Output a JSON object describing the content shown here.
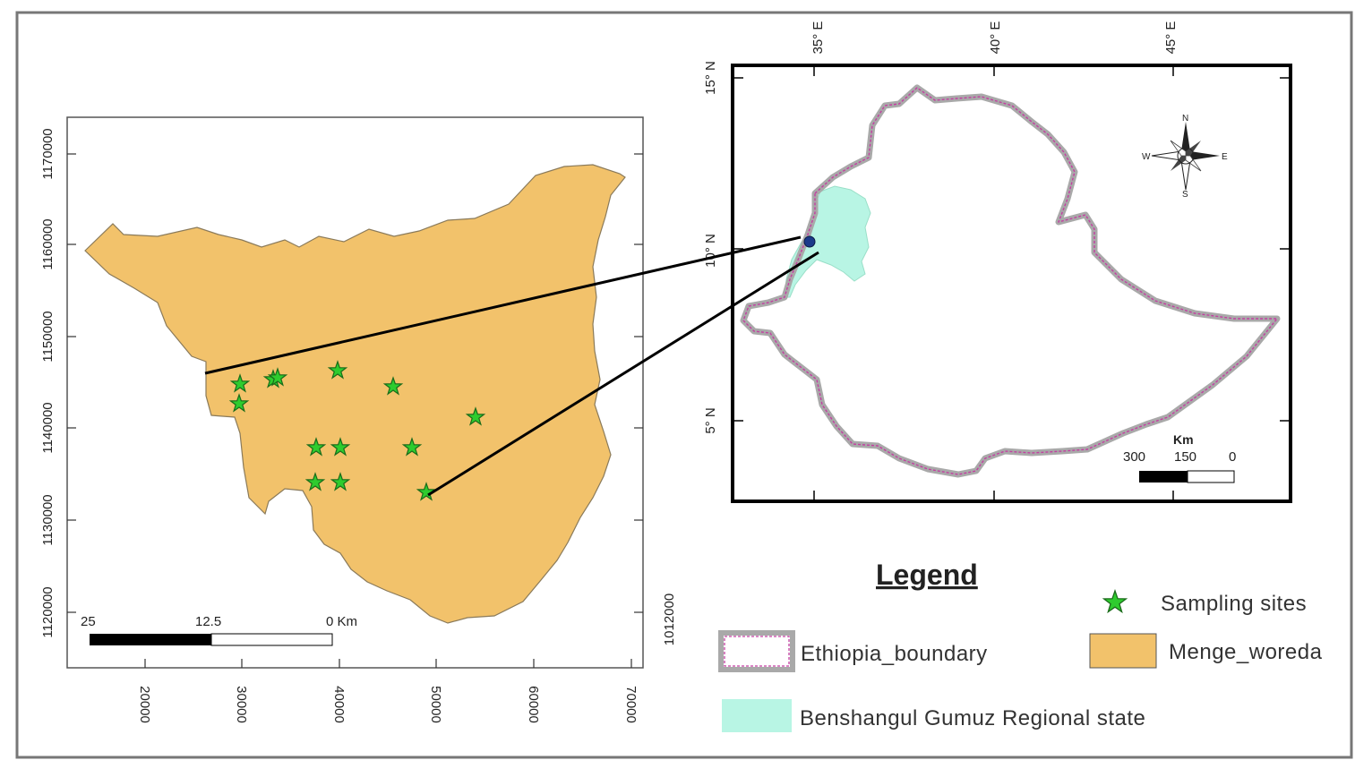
{
  "left_map": {
    "x_ticks": [
      "20000",
      "30000",
      "40000",
      "50000",
      "60000",
      "70000"
    ],
    "y_ticks": [
      "1170000",
      "1160000",
      "1150000",
      "1140000",
      "1130000",
      "1120000"
    ],
    "side_label": "1012000",
    "scale_bar": {
      "left": "25",
      "mid": "12.5",
      "right": "0 Km"
    }
  },
  "right_map": {
    "lon_ticks": [
      "35° E",
      "40° E",
      "45° E"
    ],
    "lat_ticks": [
      "15° N",
      "10° N",
      "5° N"
    ],
    "north_arrow": {
      "n": "N",
      "s": "S",
      "e": "E",
      "w": "W"
    },
    "scale_bar": {
      "unit": "Km",
      "left": "300",
      "mid": "150",
      "right": "0"
    }
  },
  "legend": {
    "title": "Legend",
    "items": {
      "sampling_sites": "Sampling sites",
      "ethiopia_boundary": "Ethiopia_boundary",
      "menge_woreda": "Menge_woreda",
      "benshangul": "Benshangul Gumuz Regional state"
    }
  },
  "colors": {
    "woreda_fill": "#f2c26b",
    "woreda_stroke": "#8a7a5a",
    "region_fill": "#b8f5e4",
    "boundary_outer": "#a9a9a9",
    "boundary_inner": "#c43fa2",
    "star_fill": "#2ecc2e",
    "star_stroke": "#1a6b1a"
  }
}
